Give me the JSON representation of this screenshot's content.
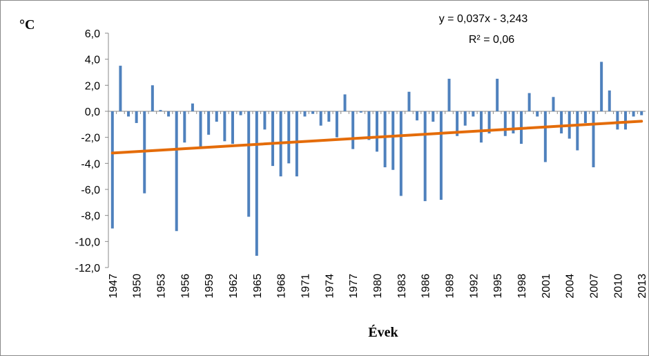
{
  "chart_data": {
    "type": "bar",
    "y_label": "°C",
    "x_label": "Évek",
    "categories": [
      "1947",
      null,
      null,
      "1950",
      null,
      null,
      "1953",
      null,
      null,
      "1956",
      null,
      null,
      "1959",
      null,
      null,
      "1962",
      null,
      null,
      "1965",
      null,
      null,
      "1968",
      null,
      null,
      "1971",
      null,
      null,
      "1974",
      null,
      null,
      "1977",
      null,
      null,
      "1980",
      null,
      null,
      "1983",
      null,
      null,
      "1986",
      null,
      null,
      "1989",
      null,
      null,
      "1992",
      null,
      null,
      "1995",
      null,
      null,
      "1998",
      null,
      null,
      "2001",
      null,
      null,
      "2004",
      null,
      null,
      "2007",
      null,
      null,
      "2010",
      null,
      null,
      "2013"
    ],
    "values": [
      -9.0,
      3.5,
      -0.4,
      -0.9,
      -6.3,
      2.0,
      0.1,
      -0.4,
      -9.2,
      -2.4,
      0.6,
      -2.8,
      -1.8,
      -0.8,
      -2.3,
      -2.5,
      -0.3,
      -8.1,
      -11.1,
      -1.4,
      -4.2,
      -5.0,
      -4.0,
      -5.0,
      -0.4,
      -0.2,
      -1.1,
      -0.8,
      -2.0,
      1.3,
      -2.9,
      -0.1,
      -2.2,
      -3.1,
      -4.3,
      -4.5,
      -6.5,
      1.5,
      -0.7,
      -6.9,
      -0.8,
      -6.8,
      2.5,
      -1.9,
      -1.1,
      -0.4,
      -2.4,
      -1.7,
      2.5,
      -1.9,
      -1.7,
      -2.5,
      1.4,
      -0.4,
      -3.9,
      1.1,
      -1.7,
      -2.1,
      -3.0,
      -0.9,
      -4.3,
      3.8,
      1.6,
      -1.4,
      -1.4,
      -0.4,
      -0.3
    ],
    "color": "#4f81bd",
    "ylim": [
      -12,
      6
    ],
    "yticks": [
      {
        "value": -12,
        "label": "-12,0"
      },
      {
        "value": -10,
        "label": "-10,0"
      },
      {
        "value": -8,
        "label": "-8,0"
      },
      {
        "value": -6,
        "label": "-6,0"
      },
      {
        "value": -4,
        "label": "-4,0"
      },
      {
        "value": -2,
        "label": "-2,0"
      },
      {
        "value": 0,
        "label": "0,0"
      },
      {
        "value": 2,
        "label": "2,0"
      },
      {
        "value": 4,
        "label": "4,0"
      },
      {
        "value": 6,
        "label": "6,0"
      }
    ],
    "grid": false,
    "trendline": {
      "slope": 0.037,
      "intercept": -3.243,
      "color": "#e46c0a",
      "equation": "y = 0,037x - 3,243",
      "r2": "R² = 0,06"
    }
  }
}
